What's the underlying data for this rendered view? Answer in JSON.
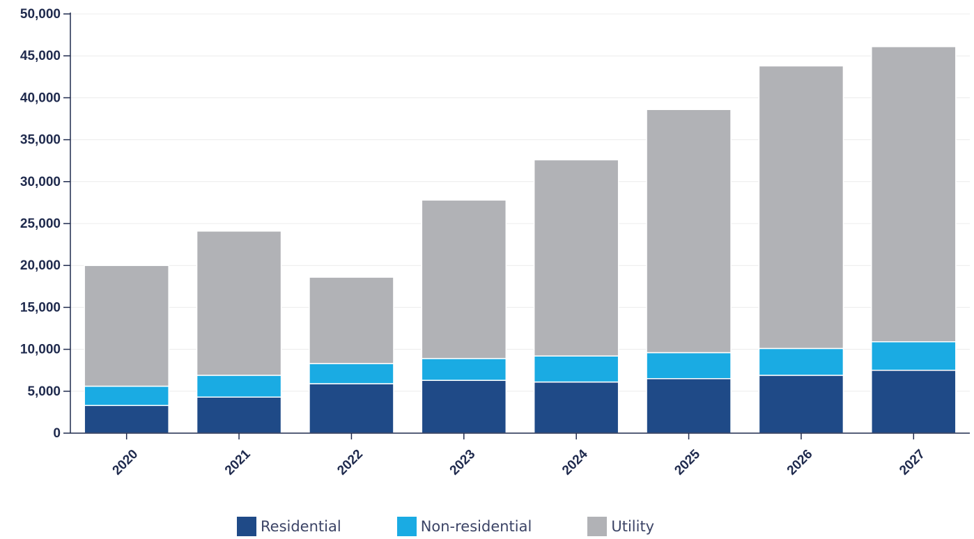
{
  "chart_data": {
    "type": "bar",
    "stacked": true,
    "categories": [
      "2020",
      "2021",
      "2022",
      "2023",
      "2024",
      "2025",
      "2026",
      "2027"
    ],
    "series": [
      {
        "name": "Residential",
        "color": "#1f4a87",
        "values": [
          3300,
          4300,
          5900,
          6300,
          6100,
          6500,
          6900,
          7500
        ]
      },
      {
        "name": "Non-residential",
        "color": "#1aabe3",
        "values": [
          2300,
          2600,
          2400,
          2600,
          3100,
          3100,
          3200,
          3400
        ]
      },
      {
        "name": "Utility",
        "color": "#b1b2b6",
        "values": [
          14400,
          17200,
          10300,
          18900,
          23400,
          29000,
          33700,
          35200
        ]
      }
    ],
    "ylim": [
      0,
      50000
    ],
    "yticks": [
      "0",
      "5,000",
      "10,000",
      "15,000",
      "20,000",
      "25,000",
      "30,000",
      "35,000",
      "40,000",
      "45,000",
      "50,000"
    ],
    "grid": true,
    "legend_position": "bottom"
  },
  "legend": {
    "items": [
      {
        "label": "Residential",
        "color": "#1f4a87"
      },
      {
        "label": "Non-residential",
        "color": "#1aabe3"
      },
      {
        "label": "Utility",
        "color": "#b1b2b6"
      }
    ]
  }
}
